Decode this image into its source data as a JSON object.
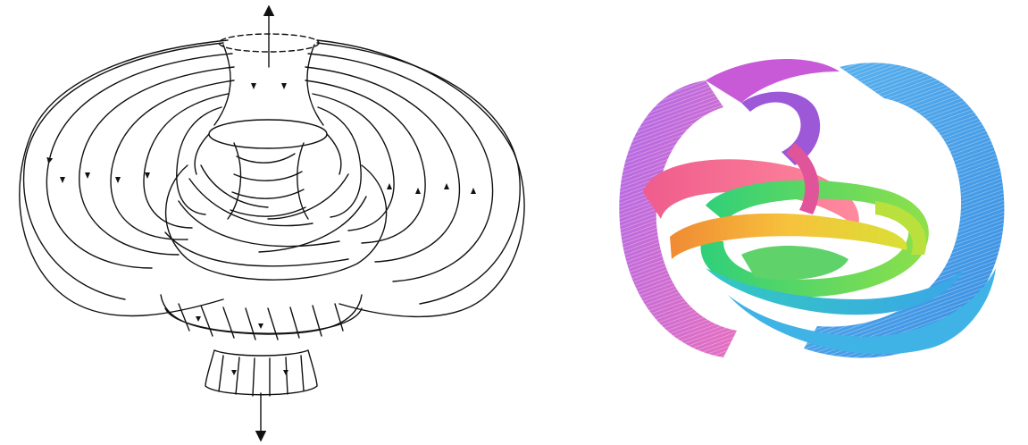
{
  "figure": {
    "panels": [
      {
        "id": "left",
        "description_kind": "line-drawing",
        "style": "black ink on white"
      },
      {
        "id": "right",
        "description_kind": "colored-render",
        "style": "rainbow ribbons"
      }
    ],
    "colors": {
      "ink": "#111111",
      "background": "#ffffff",
      "violet": "#a25be0",
      "magenta": "#e0559a",
      "pink": "#f06a8e",
      "orange": "#f6a43a",
      "yellow": "#e6d838",
      "green": "#4bd35a",
      "teal": "#35c9b4",
      "cyan": "#3ab6e8",
      "blue": "#4a8ee8"
    }
  }
}
